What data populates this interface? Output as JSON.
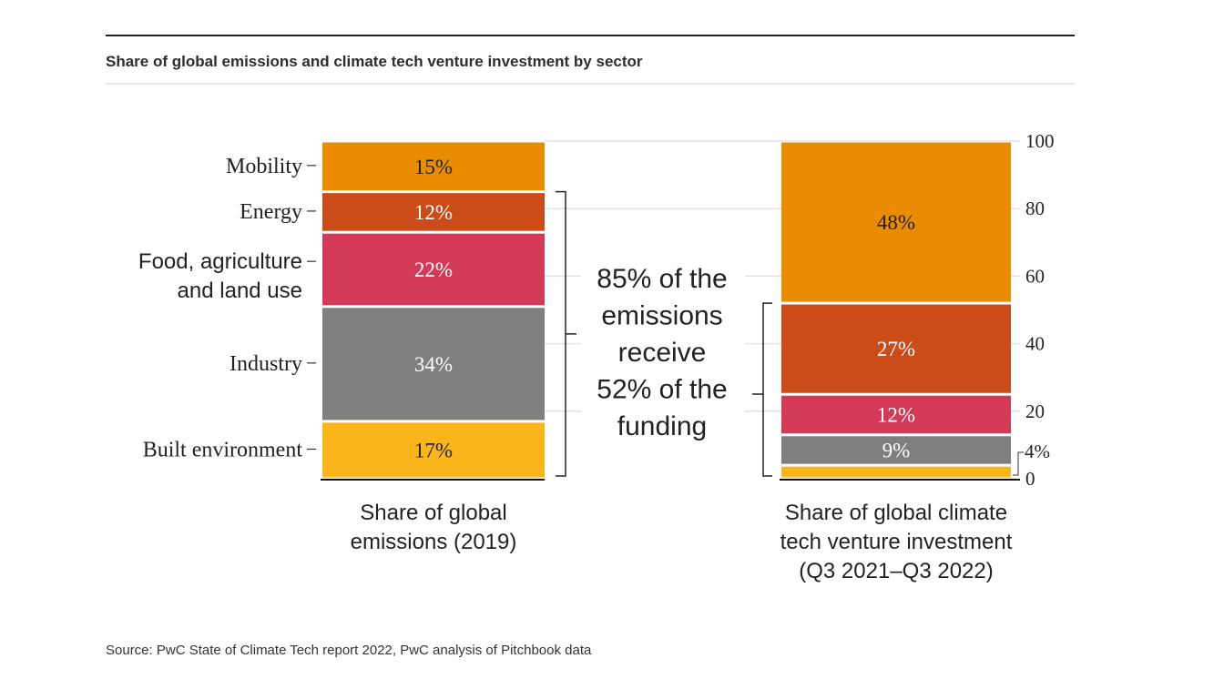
{
  "chart_data": {
    "type": "bar",
    "stacked": true,
    "title": "Share of global emissions and climate tech venture investment by sector",
    "source": "Source: PwC State of Climate Tech report 2022, PwC analysis of Pitchbook data",
    "categories": [
      "Share of global\nemissions (2019)",
      "Share of global climate\ntech venture investment\n(Q3 2021–Q3 2022)"
    ],
    "series": [
      {
        "name": "Built environment",
        "color": "#F9B51A",
        "values": [
          17,
          4
        ],
        "labels": [
          "17%",
          "4%"
        ]
      },
      {
        "name": "Industry",
        "color": "#7F7F7F",
        "values": [
          34,
          9
        ],
        "labels": [
          "34%",
          "9%"
        ]
      },
      {
        "name": "Food, agriculture and land use",
        "color": "#D43A57",
        "values": [
          22,
          12
        ],
        "labels": [
          "22%",
          "12%"
        ]
      },
      {
        "name": "Energy",
        "color": "#CB4B19",
        "values": [
          12,
          27
        ],
        "labels": [
          "12%",
          "27%"
        ]
      },
      {
        "name": "Mobility",
        "color": "#EA8C00",
        "values": [
          15,
          48
        ],
        "labels": [
          "15%",
          "48%"
        ]
      }
    ],
    "ylim": [
      0,
      100
    ],
    "yticks": [
      "0",
      "20",
      "40",
      "60",
      "80",
      "100"
    ],
    "ytick_values": [
      0,
      20,
      40,
      60,
      80,
      100
    ],
    "grid": true,
    "annotation": "85% of the emissions receive 52% of the funding"
  }
}
